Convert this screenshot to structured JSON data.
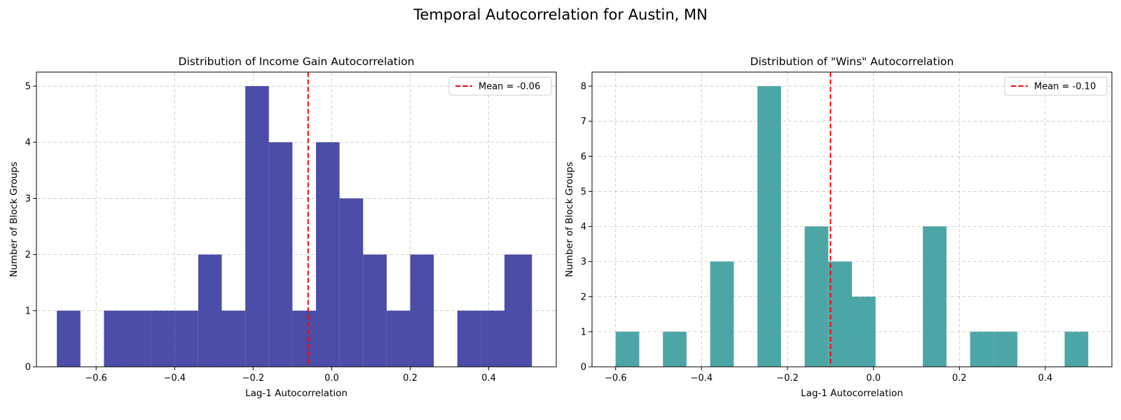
{
  "suptitle": "Temporal Autocorrelation for Austin, MN",
  "chart_data": [
    {
      "type": "histogram",
      "title": "Distribution of Income Gain Autocorrelation",
      "xlabel": "Lag-1 Autocorrelation",
      "ylabel": "Number of Block Groups",
      "xlim": [
        -0.752,
        0.572
      ],
      "ylim": [
        0,
        5.25
      ],
      "xticks": [
        -0.6,
        -0.4,
        -0.2,
        0.0,
        0.2,
        0.4
      ],
      "xtick_labels": [
        "−0.6",
        "−0.4",
        "−0.2",
        "0.0",
        "0.2",
        "0.4"
      ],
      "yticks": [
        0,
        1,
        2,
        3,
        4,
        5
      ],
      "ytick_labels": [
        "0",
        "1",
        "2",
        "3",
        "4",
        "5"
      ],
      "grid": true,
      "bar_color": "#4b4da8",
      "bin_edges": [
        -0.7,
        -0.64,
        -0.58,
        -0.52,
        -0.46,
        -0.4,
        -0.34,
        -0.28,
        -0.22,
        -0.16,
        -0.1,
        -0.04,
        0.02,
        0.08,
        0.14,
        0.2,
        0.26,
        0.32,
        0.38,
        0.44,
        0.51
      ],
      "counts": [
        1,
        0,
        1,
        1,
        1,
        1,
        2,
        1,
        5,
        4,
        1,
        4,
        3,
        2,
        1,
        2,
        0,
        1,
        1,
        2
      ],
      "mean": -0.06,
      "mean_color": "#ff0000",
      "legend_label": "Mean = -0.06",
      "legend_position": "upper right"
    },
    {
      "type": "histogram",
      "title": "Distribution of \"Wins\" Autocorrelation",
      "xlabel": "Lag-1 Autocorrelation",
      "ylabel": "Number of Block Groups",
      "xlim": [
        -0.655,
        0.555
      ],
      "ylim": [
        0,
        8.4
      ],
      "xticks": [
        -0.6,
        -0.4,
        -0.2,
        0.0,
        0.2,
        0.4
      ],
      "xtick_labels": [
        "−0.6",
        "−0.4",
        "−0.2",
        "0.0",
        "0.2",
        "0.4"
      ],
      "yticks": [
        0,
        1,
        2,
        3,
        4,
        5,
        6,
        7,
        8
      ],
      "ytick_labels": [
        "0",
        "1",
        "2",
        "3",
        "4",
        "5",
        "6",
        "7",
        "8"
      ],
      "grid": true,
      "bar_color": "#4da6a6",
      "bin_edges": [
        -0.6,
        -0.545,
        -0.49,
        -0.435,
        -0.38,
        -0.325,
        -0.27,
        -0.215,
        -0.16,
        -0.105,
        -0.05,
        0.005,
        0.06,
        0.115,
        0.17,
        0.225,
        0.28,
        0.335,
        0.39,
        0.445,
        0.5
      ],
      "counts": [
        1,
        0,
        1,
        0,
        3,
        0,
        8,
        0,
        4,
        3,
        2,
        0,
        0,
        4,
        0,
        1,
        1,
        0,
        0,
        1
      ],
      "mean": -0.1,
      "mean_color": "#ff0000",
      "legend_label": "Mean = -0.10",
      "legend_position": "upper right"
    }
  ]
}
